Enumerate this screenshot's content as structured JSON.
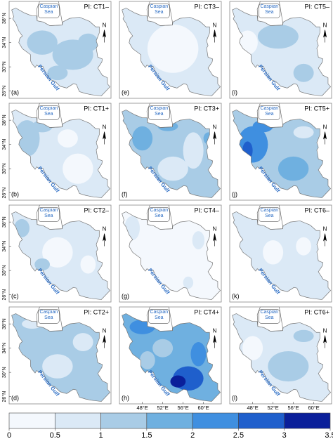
{
  "panels": [
    {
      "label": "(a)",
      "title": "PI: CT1–"
    },
    {
      "label": "(b)",
      "title": "PI: CT1+"
    },
    {
      "label": "(c)",
      "title": "PI: CT2–"
    },
    {
      "label": "(d)",
      "title": "PI: CT2+"
    },
    {
      "label": "(e)",
      "title": "PI: CT3–"
    },
    {
      "label": "(f)",
      "title": "PI: CT3+"
    },
    {
      "label": "(g)",
      "title": "PI: CT4–"
    },
    {
      "label": "(h)",
      "title": "PI: CT4+"
    },
    {
      "label": "(i)",
      "title": "PI: CT5–"
    },
    {
      "label": "(j)",
      "title": "PI: CT5+"
    },
    {
      "label": "(k)",
      "title": "PI: CT6–"
    },
    {
      "label": "(l)",
      "title": "PI: CT6+"
    }
  ],
  "map_labels": {
    "sea": "Caspian Sea",
    "gulf": "Persian Gulf",
    "north": "N"
  },
  "y_axis": {
    "ticks": [
      {
        "value": 38,
        "label": "38°N"
      },
      {
        "value": 34,
        "label": "34°N"
      },
      {
        "value": 30,
        "label": "30°N"
      },
      {
        "value": 26,
        "label": "26°N"
      }
    ]
  },
  "x_axis": {
    "ticks": [
      {
        "value": 48,
        "label": "48°E"
      },
      {
        "value": 52,
        "label": "52°E"
      },
      {
        "value": 56,
        "label": "56°E"
      },
      {
        "value": 60,
        "label": "60°E"
      }
    ]
  },
  "colorbar": {
    "bins": [
      0,
      0.5,
      1,
      1.5,
      2,
      2.5,
      3,
      3.5
    ],
    "colors": [
      "#f4f8fd",
      "#dbe9f6",
      "#a9cce6",
      "#6fb0e0",
      "#3f8fe0",
      "#1f5fcc",
      "#0a1f9a"
    ]
  }
}
